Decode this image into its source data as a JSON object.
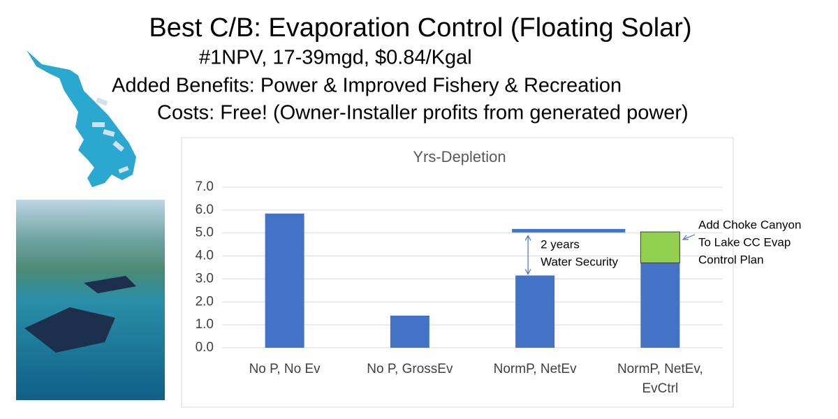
{
  "header": {
    "title": "Best C/B: Evaporation Control (Floating Solar)",
    "lines": [
      "#1NPV, 17-39mgd, $0.84/Kgal",
      "Added Benefits: Power & Improved Fishery & Recreation",
      "Costs: Free! (Owner-Installer profits from generated power)"
    ]
  },
  "chart_data": {
    "type": "bar",
    "title": "Yrs-Depletion",
    "categories": [
      "No P, No Ev",
      "No P, GrossEv",
      "NormP, NetEv",
      "NormP, NetEv, EvCtrl"
    ],
    "series": [
      {
        "color": "#4472c4",
        "values": [
          5.85,
          1.4,
          3.15,
          3.7
        ]
      },
      {
        "color": "#92d050",
        "values": [
          null,
          null,
          null,
          1.35
        ]
      }
    ],
    "stacked": true,
    "ylim": [
      0,
      7
    ],
    "yticks": [
      {
        "value": 0,
        "label": "0.0"
      },
      {
        "value": 1,
        "label": "1.0"
      },
      {
        "value": 2,
        "label": "2.0"
      },
      {
        "value": 3,
        "label": "3.0"
      },
      {
        "value": 4,
        "label": "4.0"
      },
      {
        "value": 5,
        "label": "5.0"
      },
      {
        "value": 6,
        "label": "6.0"
      },
      {
        "value": 7,
        "label": "7.0"
      }
    ],
    "grid": true,
    "reference_line": {
      "value": 5.1,
      "color": "#4472c4"
    },
    "annotations": [
      {
        "lines": [
          "2 years",
          "Water Security"
        ]
      },
      {
        "lines": [
          "Add Choke Canyon",
          "To Lake CC Evap",
          "Control Plan"
        ]
      }
    ]
  }
}
